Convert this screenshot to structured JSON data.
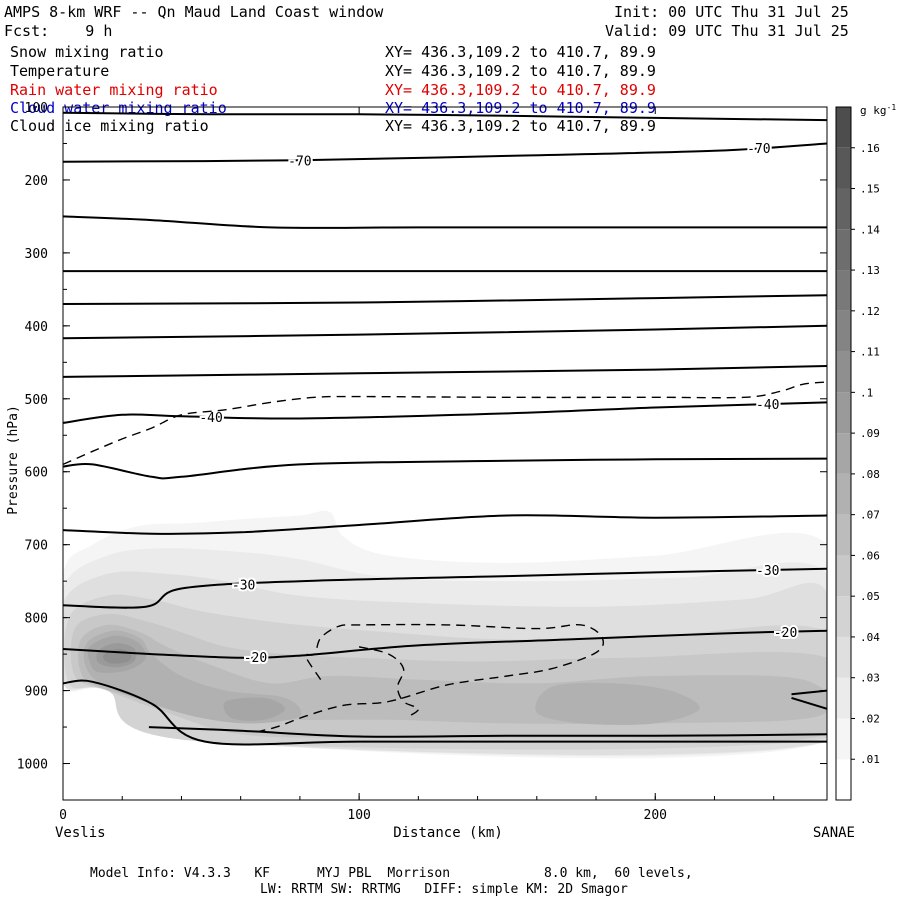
{
  "header": {
    "title": "AMPS 8-km WRF -- Qn Maud Land Coast window",
    "init": "Init: 00 UTC Thu 31 Jul 25",
    "fcst": "Fcst:    9 h",
    "valid": "Valid: 09 UTC Thu 31 Jul 25"
  },
  "fields": [
    {
      "name": "Snow mixing ratio",
      "xy": "XY= 436.3,109.2 to 410.7, 89.9",
      "color": "#000000"
    },
    {
      "name": "Temperature",
      "xy": "XY= 436.3,109.2 to 410.7, 89.9",
      "color": "#000000"
    },
    {
      "name": "Rain water mixing ratio",
      "xy": "XY= 436.3,109.2 to 410.7, 89.9",
      "color": "#e00000"
    },
    {
      "name": "Cloud water mixing ratio",
      "xy": "XY= 436.3,109.2 to 410.7, 89.9",
      "color": "#0000c8"
    },
    {
      "name": "Cloud ice mixing ratio",
      "xy": "XY= 436.3,109.2 to 410.7, 89.9",
      "color": "#000000"
    }
  ],
  "footer": {
    "line1": "Model Info: V4.3.3   KF      MYJ PBL  Morrison            8.0 km,  60 levels,",
    "line2": "LW: RRTM SW: RRTMG   DIFF: simple KM: 2D Smagor"
  },
  "chart_data": {
    "type": "heatmap",
    "title": "AMPS 8-km WRF -- Qn Maud Land Coast window",
    "xlabel": "Distance (km)",
    "ylabel": "Pressure (hPa)",
    "xlim": [
      0,
      258
    ],
    "ylim": [
      1050,
      100
    ],
    "y_scale": "linear, inverted",
    "x_ticks": [
      0,
      100,
      200
    ],
    "y_ticks": [
      100,
      200,
      300,
      400,
      500,
      600,
      700,
      800,
      900,
      1000
    ],
    "x_end_labels": {
      "left": "Veslis",
      "right": "SANAE"
    },
    "grid": false,
    "colorbar": {
      "unit_label": "g kg",
      "unit_exp": "-1",
      "levels": [
        0.01,
        0.02,
        0.03,
        0.04,
        0.05,
        0.06,
        0.07,
        0.08,
        0.09,
        0.1,
        0.11,
        0.12,
        0.13,
        0.14,
        0.15,
        0.16
      ],
      "labels": [
        ".01",
        ".02",
        ".03",
        ".04",
        ".05",
        ".06",
        ".07",
        ".08",
        ".09",
        ".1",
        ".11",
        ".12",
        ".13",
        ".14",
        ".15",
        ".16"
      ],
      "colors": [
        "#ffffff",
        "#f5f5f5",
        "#ebebeb",
        "#dfdfdf",
        "#d3d3d3",
        "#c8c8c8",
        "#bcbcbc",
        "#b1b1b1",
        "#a6a6a6",
        "#9a9a9a",
        "#8f8f8f",
        "#848484",
        "#797979",
        "#6e6e6e",
        "#636363",
        "#585858",
        "#4d4d4d"
      ]
    },
    "snow_shading_bands": [
      {
        "level": 0.01,
        "points": [
          [
            0,
            740
          ],
          [
            10,
            700
          ],
          [
            25,
            675
          ],
          [
            45,
            670
          ],
          [
            60,
            665
          ],
          [
            80,
            660
          ],
          [
            90,
            655
          ],
          [
            95,
            690
          ],
          [
            110,
            715
          ],
          [
            150,
            725
          ],
          [
            200,
            715
          ],
          [
            258,
            700
          ],
          [
            258,
            970
          ],
          [
            48,
            970
          ],
          [
            15,
            900
          ],
          [
            0,
            890
          ]
        ]
      },
      {
        "level": 0.02,
        "points": [
          [
            0,
            760
          ],
          [
            15,
            715
          ],
          [
            35,
            705
          ],
          [
            60,
            710
          ],
          [
            80,
            720
          ],
          [
            110,
            745
          ],
          [
            160,
            750
          ],
          [
            210,
            745
          ],
          [
            258,
            740
          ],
          [
            258,
            970
          ],
          [
            48,
            970
          ],
          [
            15,
            900
          ],
          [
            0,
            890
          ]
        ]
      },
      {
        "level": 0.03,
        "points": [
          [
            0,
            780
          ],
          [
            15,
            740
          ],
          [
            35,
            740
          ],
          [
            55,
            750
          ],
          [
            80,
            770
          ],
          [
            120,
            780
          ],
          [
            180,
            785
          ],
          [
            230,
            775
          ],
          [
            258,
            765
          ],
          [
            258,
            970
          ],
          [
            48,
            970
          ],
          [
            15,
            900
          ],
          [
            0,
            890
          ]
        ]
      },
      {
        "level": 0.04,
        "points": [
          [
            2,
            800
          ],
          [
            15,
            770
          ],
          [
            30,
            775
          ],
          [
            45,
            790
          ],
          [
            60,
            800
          ],
          [
            80,
            810
          ],
          [
            110,
            820
          ],
          [
            150,
            830
          ],
          [
            200,
            825
          ],
          [
            258,
            820
          ],
          [
            258,
            965
          ],
          [
            48,
            970
          ],
          [
            15,
            900
          ],
          [
            2,
            890
          ]
        ]
      },
      {
        "level": 0.05,
        "points": [
          [
            4,
            815
          ],
          [
            15,
            795
          ],
          [
            28,
            805
          ],
          [
            40,
            820
          ],
          [
            55,
            840
          ],
          [
            75,
            850
          ],
          [
            100,
            855
          ],
          [
            140,
            860
          ],
          [
            190,
            855
          ],
          [
            258,
            855
          ],
          [
            258,
            960
          ],
          [
            180,
            965
          ],
          [
            100,
            965
          ],
          [
            60,
            960
          ],
          [
            35,
            930
          ],
          [
            15,
            900
          ],
          [
            4,
            880
          ]
        ]
      },
      {
        "level": 0.06,
        "points": [
          [
            6,
            830
          ],
          [
            15,
            810
          ],
          [
            26,
            820
          ],
          [
            35,
            840
          ],
          [
            50,
            865
          ],
          [
            70,
            890
          ],
          [
            90,
            880
          ],
          [
            120,
            885
          ],
          [
            160,
            890
          ],
          [
            200,
            880
          ],
          [
            250,
            885
          ],
          [
            255,
            935
          ],
          [
            200,
            945
          ],
          [
            150,
            945
          ],
          [
            110,
            940
          ],
          [
            75,
            940
          ],
          [
            50,
            935
          ],
          [
            30,
            915
          ],
          [
            12,
            895
          ],
          [
            6,
            875
          ]
        ]
      },
      {
        "level": 0.07,
        "points": [
          [
            8,
            835
          ],
          [
            17,
            818
          ],
          [
            26,
            828
          ],
          [
            30,
            850
          ],
          [
            40,
            880
          ],
          [
            55,
            900
          ],
          [
            75,
            910
          ],
          [
            80,
            935
          ],
          [
            65,
            945
          ],
          [
            50,
            940
          ],
          [
            35,
            925
          ],
          [
            15,
            895
          ],
          [
            8,
            870
          ]
        ]
      },
      {
        "level": 0.07,
        "points": [
          [
            165,
            895
          ],
          [
            185,
            890
          ],
          [
            205,
            900
          ],
          [
            215,
            925
          ],
          [
            200,
            945
          ],
          [
            175,
            945
          ],
          [
            160,
            930
          ]
        ]
      },
      {
        "level": 0.08,
        "points": [
          [
            9,
            840
          ],
          [
            17,
            825
          ],
          [
            25,
            833
          ],
          [
            28,
            855
          ],
          [
            22,
            872
          ],
          [
            12,
            875
          ],
          [
            9,
            860
          ]
        ]
      },
      {
        "level": 0.08,
        "points": [
          [
            55,
            915
          ],
          [
            68,
            910
          ],
          [
            75,
            925
          ],
          [
            68,
            940
          ],
          [
            57,
            938
          ]
        ]
      },
      {
        "level": 0.09,
        "points": [
          [
            12,
            845
          ],
          [
            18,
            835
          ],
          [
            24,
            842
          ],
          [
            24,
            860
          ],
          [
            18,
            868
          ],
          [
            12,
            862
          ]
        ]
      },
      {
        "level": 0.1,
        "points": [
          [
            14,
            850
          ],
          [
            19,
            843
          ],
          [
            23,
            850
          ],
          [
            22,
            860
          ],
          [
            17,
            863
          ],
          [
            14,
            858
          ]
        ]
      }
    ],
    "temperature_isotherms": [
      {
        "points": [
          [
            0,
            108
          ],
          [
            50,
            110
          ],
          [
            100,
            110
          ],
          [
            150,
            112
          ],
          [
            200,
            115
          ],
          [
            258,
            118
          ]
        ]
      },
      {
        "label": "-70",
        "labels_at": [
          80,
          235
        ],
        "points": [
          [
            0,
            175
          ],
          [
            80,
            173
          ],
          [
            150,
            167
          ],
          [
            220,
            160
          ],
          [
            258,
            150
          ]
        ]
      },
      {
        "points": [
          [
            0,
            250
          ],
          [
            30,
            255
          ],
          [
            70,
            265
          ],
          [
            120,
            265
          ],
          [
            200,
            265
          ],
          [
            258,
            265
          ]
        ]
      },
      {
        "points": [
          [
            0,
            325
          ],
          [
            100,
            325
          ],
          [
            200,
            325
          ],
          [
            258,
            325
          ]
        ]
      },
      {
        "points": [
          [
            0,
            370
          ],
          [
            100,
            368
          ],
          [
            200,
            362
          ],
          [
            258,
            358
          ]
        ]
      },
      {
        "points": [
          [
            0,
            417
          ],
          [
            100,
            412
          ],
          [
            200,
            405
          ],
          [
            258,
            400
          ]
        ]
      },
      {
        "points": [
          [
            0,
            470
          ],
          [
            100,
            465
          ],
          [
            200,
            460
          ],
          [
            258,
            455
          ]
        ]
      },
      {
        "label": "-40",
        "labels_at": [
          50,
          238
        ],
        "points": [
          [
            0,
            533
          ],
          [
            20,
            522
          ],
          [
            40,
            524
          ],
          [
            80,
            527
          ],
          [
            150,
            520
          ],
          [
            200,
            512
          ],
          [
            258,
            505
          ]
        ]
      },
      {
        "points": [
          [
            0,
            593
          ],
          [
            10,
            590
          ],
          [
            30,
            607
          ],
          [
            40,
            607
          ],
          [
            80,
            590
          ],
          [
            150,
            585
          ],
          [
            200,
            583
          ],
          [
            258,
            582
          ]
        ]
      },
      {
        "points": [
          [
            0,
            680
          ],
          [
            30,
            685
          ],
          [
            60,
            683
          ],
          [
            100,
            673
          ],
          [
            150,
            660
          ],
          [
            200,
            663
          ],
          [
            258,
            660
          ]
        ]
      },
      {
        "label": "-30",
        "labels_at": [
          61,
          238
        ],
        "points": [
          [
            0,
            783
          ],
          [
            28,
            785
          ],
          [
            40,
            760
          ],
          [
            80,
            750
          ],
          [
            150,
            743
          ],
          [
            200,
            738
          ],
          [
            258,
            733
          ]
        ]
      },
      {
        "label": "-20",
        "labels_at": [
          65,
          244
        ],
        "points": [
          [
            0,
            843
          ],
          [
            30,
            850
          ],
          [
            60,
            855
          ],
          [
            80,
            852
          ],
          [
            120,
            838
          ],
          [
            170,
            830
          ],
          [
            220,
            822
          ],
          [
            258,
            818
          ]
        ]
      },
      {
        "points": [
          [
            0,
            890
          ],
          [
            10,
            888
          ],
          [
            30,
            918
          ],
          [
            48,
            970
          ],
          [
            100,
            970
          ],
          [
            180,
            970
          ],
          [
            258,
            970
          ]
        ]
      },
      {
        "points": [
          [
            29,
            950
          ],
          [
            60,
            955
          ],
          [
            100,
            963
          ],
          [
            150,
            962
          ],
          [
            200,
            962
          ],
          [
            258,
            960
          ]
        ]
      },
      {
        "points": [
          [
            246,
            905
          ],
          [
            258,
            900
          ]
        ]
      },
      {
        "points": [
          [
            246,
            910
          ],
          [
            258,
            925
          ]
        ]
      }
    ],
    "cloud_ice_contours": [
      {
        "points": [
          [
            0,
            590
          ],
          [
            10,
            572
          ],
          [
            20,
            555
          ],
          [
            30,
            540
          ],
          [
            40,
            522
          ],
          [
            55,
            515
          ],
          [
            70,
            505
          ],
          [
            85,
            498
          ],
          [
            100,
            497
          ],
          [
            150,
            498
          ],
          [
            200,
            498
          ],
          [
            230,
            498
          ],
          [
            242,
            490
          ],
          [
            250,
            480
          ],
          [
            258,
            477
          ]
        ]
      },
      {
        "points": [
          [
            87,
            885
          ],
          [
            82,
            853
          ],
          [
            85,
            850
          ],
          [
            87,
            828
          ],
          [
            93,
            812
          ],
          [
            100,
            810
          ],
          [
            130,
            810
          ],
          [
            160,
            815
          ],
          [
            175,
            810
          ],
          [
            182,
            827
          ],
          [
            180,
            848
          ],
          [
            165,
            870
          ],
          [
            150,
            880
          ],
          [
            130,
            892
          ],
          [
            110,
            915
          ],
          [
            95,
            920
          ],
          [
            82,
            935
          ],
          [
            72,
            950
          ],
          [
            65,
            957
          ]
        ]
      },
      {
        "points": [
          [
            100,
            840
          ],
          [
            110,
            850
          ],
          [
            115,
            870
          ],
          [
            113,
            895
          ],
          [
            115,
            915
          ],
          [
            120,
            925
          ],
          [
            117,
            935
          ]
        ]
      }
    ]
  }
}
